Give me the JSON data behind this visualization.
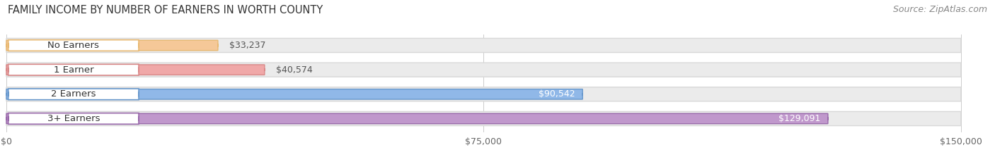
{
  "title": "FAMILY INCOME BY NUMBER OF EARNERS IN WORTH COUNTY",
  "source": "Source: ZipAtlas.com",
  "categories": [
    "No Earners",
    "1 Earner",
    "2 Earners",
    "3+ Earners"
  ],
  "values": [
    33237,
    40574,
    90542,
    129091
  ],
  "labels": [
    "$33,237",
    "$40,574",
    "$90,542",
    "$129,091"
  ],
  "bar_colors": [
    "#f5c898",
    "#f0a8a8",
    "#90b8e8",
    "#c098cc"
  ],
  "bar_edge_colors": [
    "#e8b870",
    "#d88888",
    "#6898cc",
    "#9868aa"
  ],
  "label_colors_inside": [
    "#ffffff",
    "#ffffff",
    "#ffffff",
    "#ffffff"
  ],
  "label_colors_outside": [
    "#555555",
    "#555555",
    "#555555",
    "#555555"
  ],
  "label_inside_threshold": 60000,
  "xlim_max": 150000,
  "xticks": [
    0,
    75000,
    150000
  ],
  "xtick_labels": [
    "$0",
    "$75,000",
    "$150,000"
  ],
  "background_color": "#ffffff",
  "bar_bg_color": "#ebebeb",
  "bar_bg_border_color": "#d8d8d8",
  "title_fontsize": 10.5,
  "source_fontsize": 9,
  "tick_fontsize": 9,
  "label_fontsize": 9,
  "tag_fontsize": 9.5
}
